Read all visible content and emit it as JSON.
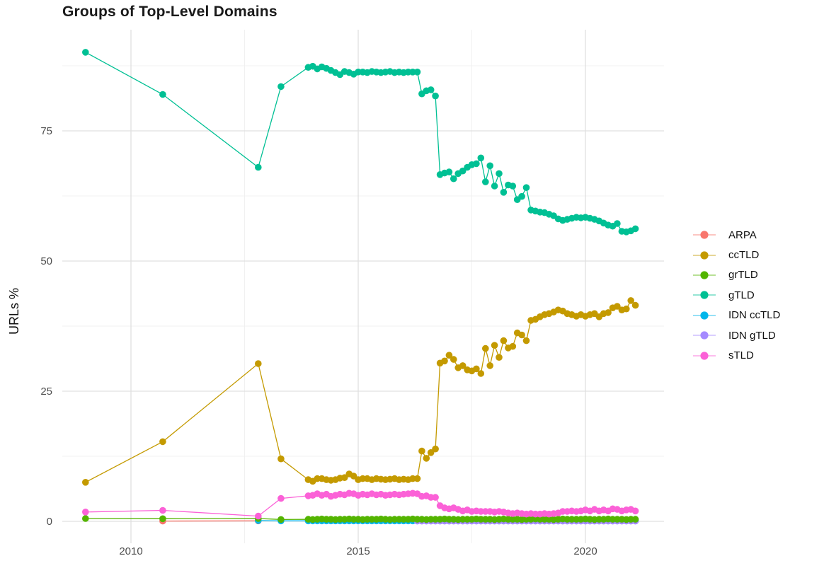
{
  "chart_data": {
    "type": "line",
    "title": "Groups of Top-Level Domains",
    "xlabel": "",
    "ylabel": "URLs %",
    "legend_position": "right",
    "grid": "on",
    "x_ticks": [
      "2010",
      "2015",
      "2020"
    ],
    "x_tick_years": [
      2010,
      2015,
      2020
    ],
    "x_minor_years": [
      2012.5,
      2017.5
    ],
    "y_ticks": [
      "0",
      "25",
      "50",
      "75"
    ],
    "y_tick_values": [
      0,
      25,
      50,
      75
    ],
    "y_minor_values": [
      12.5,
      37.5,
      62.5,
      87.5
    ],
    "xlim": [
      2008.5,
      2021.7
    ],
    "ylim": [
      -4.2,
      94.4
    ],
    "colors": {
      "ARPA": "#F8766D",
      "ccTLD": "#C49A00",
      "grTLD": "#53B400",
      "gTLD": "#00C094",
      "IDN ccTLD": "#00B6EB",
      "IDN gTLD": "#A58AFF",
      "sTLD": "#FB61D7"
    },
    "x_dense": [
      2013.9,
      2014.0,
      2014.1,
      2014.2,
      2014.3,
      2014.4,
      2014.5,
      2014.6,
      2014.7,
      2014.8,
      2014.9,
      2015.0,
      2015.1,
      2015.2,
      2015.3,
      2015.4,
      2015.5,
      2015.6,
      2015.7,
      2015.8,
      2015.9,
      2016.0,
      2016.1,
      2016.2,
      2016.3,
      2016.4,
      2016.5,
      2016.6,
      2016.7,
      2016.8,
      2016.9,
      2017.0,
      2017.1,
      2017.2,
      2017.3,
      2017.4,
      2017.5,
      2017.6,
      2017.7,
      2017.8,
      2017.9,
      2018.0,
      2018.1,
      2018.2,
      2018.3,
      2018.4,
      2018.5,
      2018.6,
      2018.7,
      2018.8,
      2018.9,
      2019.0,
      2019.1,
      2019.2,
      2019.3,
      2019.4,
      2019.5,
      2019.6,
      2019.7,
      2019.8,
      2019.9,
      2020.0,
      2020.1,
      2020.2,
      2020.3,
      2020.4,
      2020.5,
      2020.6,
      2020.7,
      2020.8,
      2020.9,
      2021.0,
      2021.1
    ],
    "series": [
      {
        "name": "ARPA",
        "color": "#F8766D",
        "points": [
          [
            2010.7,
            0.05
          ],
          [
            2012.8,
            0.1
          ]
        ],
        "dense_y": null
      },
      {
        "name": "ccTLD",
        "color": "#C49A00",
        "points": [
          [
            2009.0,
            7.5
          ],
          [
            2010.7,
            15.3
          ],
          [
            2012.8,
            30.3
          ],
          [
            2013.3,
            12.0
          ]
        ],
        "dense_y": [
          8.0,
          7.7,
          8.2,
          8.2,
          8.0,
          7.9,
          8.0,
          8.3,
          8.4,
          9.1,
          8.7,
          8.0,
          8.2,
          8.2,
          8.0,
          8.2,
          8.1,
          8.0,
          8.1,
          8.2,
          8.0,
          8.1,
          8.0,
          8.2,
          8.2,
          13.5,
          12.1,
          13.2,
          13.9,
          30.4,
          30.8,
          31.9,
          31.1,
          29.5,
          29.9,
          29.1,
          28.9,
          29.3,
          28.4,
          33.2,
          29.9,
          33.8,
          31.5,
          34.7,
          33.3,
          33.6,
          36.2,
          35.8,
          34.7,
          38.6,
          38.8,
          39.3,
          39.7,
          39.9,
          40.2,
          40.6,
          40.4,
          39.9,
          39.7,
          39.4,
          39.7,
          39.4,
          39.7,
          39.9,
          39.3,
          39.9,
          40.1,
          41.0,
          41.3,
          40.6,
          40.8,
          42.4,
          41.5
        ]
      },
      {
        "name": "grTLD",
        "color": "#53B400",
        "points": [
          [
            2009.0,
            0.55
          ],
          [
            2010.7,
            0.5
          ],
          [
            2012.8,
            0.55
          ],
          [
            2013.3,
            0.35
          ]
        ],
        "dense_y": [
          0.4,
          0.35,
          0.4,
          0.45,
          0.4,
          0.4,
          0.35,
          0.4,
          0.4,
          0.45,
          0.4,
          0.4,
          0.35,
          0.4,
          0.4,
          0.4,
          0.45,
          0.4,
          0.35,
          0.4,
          0.4,
          0.4,
          0.4,
          0.45,
          0.4,
          0.4,
          0.35,
          0.4,
          0.4,
          0.4,
          0.45,
          0.4,
          0.4,
          0.35,
          0.4,
          0.4,
          0.4,
          0.45,
          0.4,
          0.4,
          0.4,
          0.35,
          0.4,
          0.45,
          0.4,
          0.4,
          0.4,
          0.35,
          0.4,
          0.4,
          0.45,
          0.4,
          0.4,
          0.4,
          0.35,
          0.4,
          0.45,
          0.4,
          0.4,
          0.4,
          0.4,
          0.45,
          0.4,
          0.35,
          0.4,
          0.4,
          0.45,
          0.4,
          0.4,
          0.4,
          0.35,
          0.4,
          0.4
        ]
      },
      {
        "name": "gTLD",
        "color": "#00C094",
        "points": [
          [
            2009.0,
            90.1
          ],
          [
            2010.7,
            82.0
          ],
          [
            2012.8,
            68.0
          ],
          [
            2013.3,
            83.5
          ]
        ],
        "dense_y": [
          87.2,
          87.4,
          86.9,
          87.3,
          87.0,
          86.6,
          86.2,
          85.8,
          86.4,
          86.2,
          85.9,
          86.3,
          86.3,
          86.2,
          86.4,
          86.3,
          86.2,
          86.3,
          86.4,
          86.2,
          86.3,
          86.2,
          86.3,
          86.3,
          86.3,
          82.1,
          82.7,
          82.9,
          81.7,
          66.6,
          66.9,
          67.1,
          65.8,
          66.8,
          67.3,
          68.0,
          68.5,
          68.7,
          69.8,
          65.2,
          68.3,
          64.4,
          66.8,
          63.2,
          64.6,
          64.4,
          61.8,
          62.4,
          64.1,
          59.8,
          59.6,
          59.4,
          59.3,
          59.0,
          58.7,
          58.1,
          57.8,
          58.0,
          58.2,
          58.4,
          58.3,
          58.4,
          58.2,
          58.0,
          57.7,
          57.3,
          56.9,
          56.7,
          57.2,
          55.7,
          55.6,
          55.8,
          56.2
        ]
      },
      {
        "name": "IDN ccTLD",
        "color": "#00B6EB",
        "points": [
          [
            2012.8,
            0.15
          ],
          [
            2013.3,
            0.1
          ]
        ],
        "dense_y": [
          0.1,
          0.1,
          0.1,
          0.1,
          0.1,
          0.1,
          0.1,
          0.1,
          0.1,
          0.1,
          0.1,
          0.1,
          0.1,
          0.1,
          0.1,
          0.1,
          0.1,
          0.1,
          0.1,
          0.1,
          0.1,
          0.1,
          0.1,
          0.1,
          0.1,
          0.1,
          0.1,
          0.1,
          0.1,
          0.1,
          0.1,
          0.1,
          0.1,
          0.1,
          0.1,
          0.1,
          0.1,
          0.1,
          0.1,
          0.1,
          0.1,
          0.1,
          0.1,
          0.1,
          0.1,
          0.1,
          0.1,
          0.1,
          0.1,
          0.1,
          0.1,
          0.1,
          0.1,
          0.1,
          0.1,
          0.1,
          0.1,
          0.1,
          0.1,
          0.1,
          0.1,
          0.1,
          0.1,
          0.1,
          0.1,
          0.1,
          0.1,
          0.1,
          0.1,
          0.1,
          0.1,
          0.1,
          0.1
        ]
      },
      {
        "name": "IDN gTLD",
        "color": "#A58AFF",
        "points": [],
        "dense_y": [
          null,
          null,
          null,
          null,
          null,
          null,
          null,
          null,
          null,
          null,
          null,
          null,
          null,
          null,
          null,
          null,
          null,
          null,
          null,
          null,
          null,
          null,
          null,
          null,
          0.05,
          0.05,
          0.05,
          0.05,
          0.05,
          0.05,
          0.05,
          0.05,
          0.05,
          0.05,
          0.05,
          0.05,
          0.05,
          0.05,
          0.05,
          0.05,
          0.05,
          0.05,
          0.05,
          0.05,
          0.05,
          0.05,
          0.05,
          0.05,
          0.05,
          0.05,
          0.05,
          0.05,
          0.05,
          0.05,
          0.05,
          0.05,
          0.05,
          0.05,
          0.05,
          0.05,
          0.05,
          0.05,
          0.05,
          0.05,
          0.05,
          0.05,
          0.05,
          0.05,
          0.05,
          0.05,
          0.05,
          0.05,
          0.05
        ]
      },
      {
        "name": "sTLD",
        "color": "#FB61D7",
        "points": [
          [
            2009.0,
            1.8
          ],
          [
            2010.7,
            2.1
          ],
          [
            2012.8,
            1.0
          ],
          [
            2013.3,
            4.4
          ]
        ],
        "dense_y": [
          4.9,
          5.0,
          5.3,
          5.0,
          5.2,
          4.8,
          5.0,
          5.2,
          5.1,
          5.4,
          5.3,
          5.0,
          5.2,
          5.1,
          5.3,
          5.1,
          5.2,
          5.0,
          5.1,
          5.2,
          5.1,
          5.2,
          5.3,
          5.4,
          5.3,
          4.8,
          4.9,
          4.6,
          4.6,
          3.0,
          2.6,
          2.4,
          2.6,
          2.3,
          2.0,
          2.2,
          1.9,
          2.0,
          1.9,
          1.9,
          1.9,
          1.8,
          1.9,
          1.8,
          1.6,
          1.5,
          1.6,
          1.5,
          1.4,
          1.5,
          1.4,
          1.4,
          1.5,
          1.4,
          1.5,
          1.6,
          1.9,
          1.9,
          2.0,
          1.9,
          2.0,
          2.2,
          2.0,
          2.3,
          2.0,
          2.2,
          2.0,
          2.4,
          2.3,
          2.0,
          2.2,
          2.3,
          2.0
        ]
      }
    ]
  }
}
